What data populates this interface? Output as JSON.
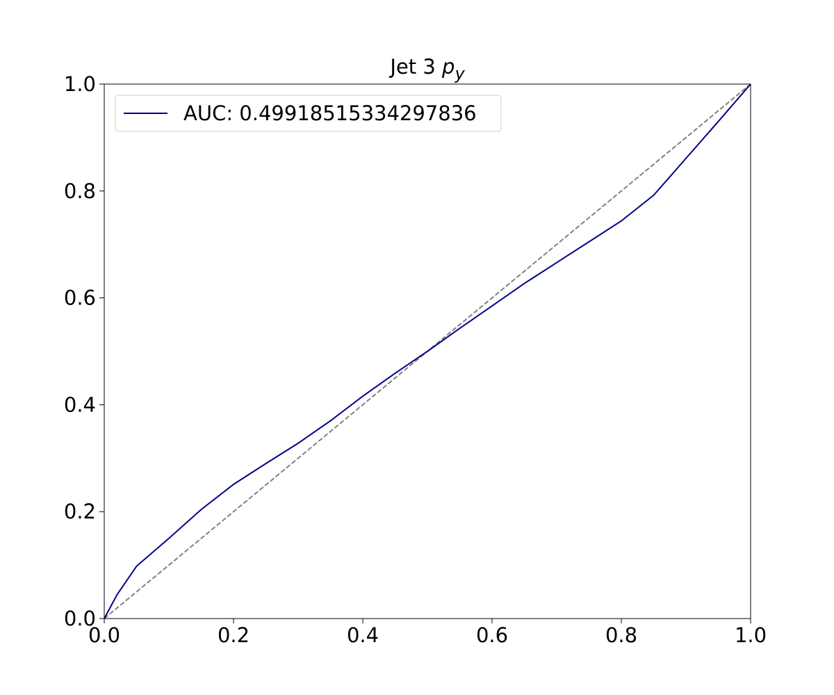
{
  "chart_data": {
    "type": "line",
    "title": {
      "text": "Jet 3",
      "math": "p",
      "subscript": "y"
    },
    "x": [
      0,
      0.02,
      0.05,
      0.1,
      0.15,
      0.2,
      0.25,
      0.3,
      0.35,
      0.4,
      0.45,
      0.5,
      0.55,
      0.6,
      0.65,
      0.7,
      0.75,
      0.8,
      0.85,
      0.9,
      0.95,
      1.0
    ],
    "series": [
      {
        "name": "AUC: 0.49918515334297836",
        "color": "#00008b",
        "values": [
          0,
          0.045,
          0.098,
          0.15,
          0.204,
          0.251,
          0.29,
          0.328,
          0.37,
          0.416,
          0.459,
          0.5,
          0.543,
          0.585,
          0.627,
          0.666,
          0.705,
          0.744,
          0.792,
          0.861,
          0.93,
          1.0
        ]
      }
    ],
    "reference_line": {
      "x": [
        0,
        1
      ],
      "values": [
        0,
        1
      ],
      "color": "#808080",
      "style": "dashed"
    },
    "xlim": [
      0,
      1
    ],
    "ylim": [
      0,
      1
    ],
    "xticks": [
      {
        "value": 0,
        "label": "0.0"
      },
      0.2,
      0.4,
      0.6,
      0.8,
      {
        "value": 1,
        "label": "1.0"
      }
    ],
    "yticks": [
      {
        "value": 0,
        "label": "0.0"
      },
      0.2,
      0.4,
      0.6,
      0.8,
      {
        "value": 1,
        "label": "1.0"
      }
    ],
    "grid": false,
    "legend": "upper left"
  }
}
